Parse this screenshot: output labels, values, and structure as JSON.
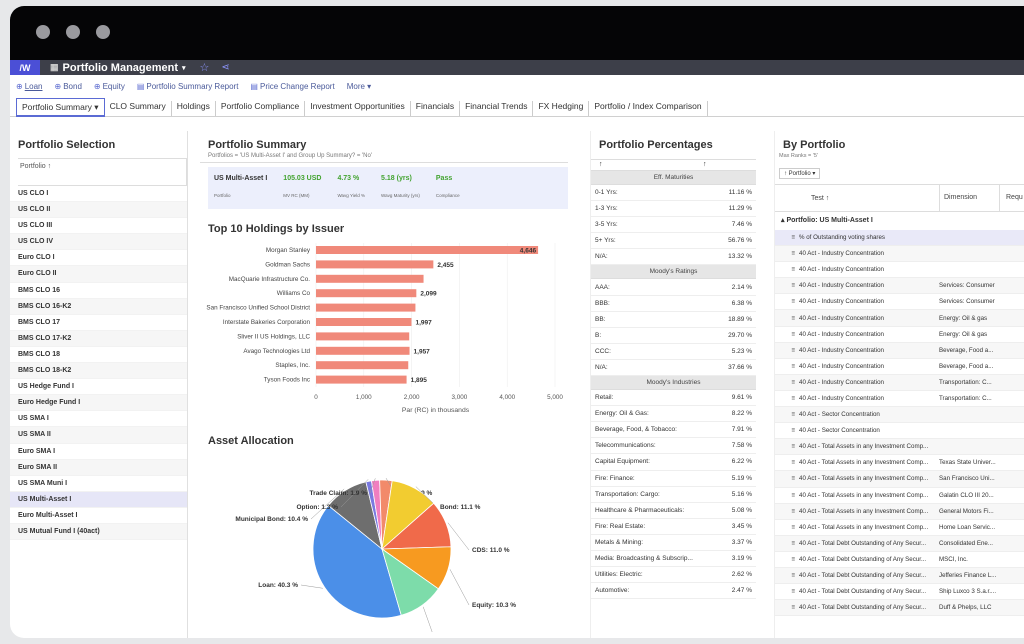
{
  "app": {
    "title": "Portfolio Management",
    "logo": "/W"
  },
  "toolbar": {
    "loan": "Loan",
    "bond": "Bond",
    "equity": "Equity",
    "report1": "Portfolio Summary Report",
    "report2": "Price Change Report",
    "more": "More"
  },
  "tabs": [
    "Portfolio Summary",
    "CLO Summary",
    "Holdings",
    "Portfolio Compliance",
    "Investment Opportunities",
    "Financials",
    "Financial Trends",
    "FX Hedging",
    "Portfolio / Index Comparison"
  ],
  "selection": {
    "title": "Portfolio Selection",
    "col": "Portfolio ↑",
    "items": [
      "US CLO I",
      "US CLO II",
      "US CLO III",
      "US CLO IV",
      "Euro CLO I",
      "Euro CLO II",
      "BMS CLO 16",
      "BMS CLO 16-K2",
      "BMS CLO 17",
      "BMS CLO 17-K2",
      "BMS CLO 18",
      "BMS CLO 18-K2",
      "US Hedge Fund I",
      "Euro Hedge Fund I",
      "US SMA I",
      "US SMA II",
      "Euro SMA I",
      "Euro SMA II",
      "US SMA Muni I",
      "US Multi-Asset I",
      "Euro Multi-Asset I",
      "US Mutual Fund I (40act)"
    ],
    "selected": "US Multi-Asset I"
  },
  "summary": {
    "title": "Portfolio Summary",
    "filter": "Portfolios = 'US Multi-Asset I' and Group Up Summary? = 'No'",
    "portfolio": "US Multi-Asset I",
    "mv": "105.03 USD",
    "yield": "4.73 %",
    "maturity": "5.18 (yrs)",
    "compliance": "Pass",
    "labels": [
      "Portfolio",
      "MV RC (MM)",
      "Wavg Yield %",
      "Wavg Maturity (yrs)",
      "Compliance"
    ]
  },
  "holdings": {
    "title": "Top 10 Holdings by Issuer",
    "xlabel": "Par (RC) in thousands"
  },
  "chart_data": [
    {
      "type": "bar",
      "title": "Top 10 Holdings by Issuer",
      "categories": [
        "Morgan Stanley",
        "Goldman Sachs",
        "MacQuarie Infrastructure Co.",
        "Williams Co",
        "San Francisco Unified School District",
        "Interstate Bakeries Corporation",
        "Sliver II US Holdings, LLC",
        "Avago Technologies Ltd",
        "Staples, Inc.",
        "Tyson Foods Inc"
      ],
      "values": [
        4646,
        2455,
        2250,
        2099,
        2080,
        1997,
        1950,
        1957,
        1930,
        1895
      ],
      "labels": [
        "4,646",
        "2,455",
        "",
        "2,099",
        "",
        "1,997",
        "",
        "1,957",
        "",
        "1,895"
      ],
      "xlabel": "Par (RC) in thousands",
      "xlim": [
        0,
        5000
      ],
      "ticks": [
        "0",
        "1,000",
        "2,000",
        "3,000",
        "4,000",
        "5,000"
      ],
      "color": "#f0897a"
    },
    {
      "type": "pie",
      "title": "Asset Allocation",
      "slices": [
        {
          "name": "Loan",
          "value": 40.3,
          "color": "#4b8fe8",
          "label": "Loan: 40.3 %"
        },
        {
          "name": "Municipal Bond",
          "value": 10.4,
          "color": "#6e6e6e",
          "label": "Municipal Bond: 10.4 %"
        },
        {
          "name": "Option",
          "value": 1.3,
          "color": "#7a7ae0",
          "label": "Option: 1.3 %"
        },
        {
          "name": "Trade Claim",
          "value": 1.9,
          "color": "#f07ec0",
          "label": "Trade Claim: 1.9 %"
        },
        {
          "name": "ABS",
          "value": 2.9,
          "color": "#f28a6a",
          "label": "ABS: 2.9 %"
        },
        {
          "name": "Bond",
          "value": 11.1,
          "color": "#f2cc30",
          "label": "Bond: 11.1 %"
        },
        {
          "name": "CDS",
          "value": 11.0,
          "color": "#f06a4a",
          "label": "CDS: 11.0 %"
        },
        {
          "name": "Equity",
          "value": 10.3,
          "color": "#f79a20",
          "label": "Equity: 10.3 %"
        },
        {
          "name": "IRS",
          "value": 10.7,
          "color": "#7ddcaa",
          "label": "IRS: 10.7 %"
        }
      ]
    }
  ],
  "allocation": {
    "title": "Asset Allocation"
  },
  "percentages": {
    "title": "Portfolio Percentages",
    "groups": [
      {
        "name": "Eff. Maturities",
        "rows": [
          [
            "0-1 Yrs:",
            "11.16 %"
          ],
          [
            "1-3 Yrs:",
            "11.29 %"
          ],
          [
            "3-5 Yrs:",
            "7.46 %"
          ],
          [
            "5+ Yrs:",
            "56.76 %"
          ],
          [
            "N/A:",
            "13.32 %"
          ]
        ]
      },
      {
        "name": "Moody's Ratings",
        "rows": [
          [
            "AAA:",
            "2.14 %"
          ],
          [
            "BBB:",
            "6.38 %"
          ],
          [
            "BB:",
            "18.89 %"
          ],
          [
            "B:",
            "29.70 %"
          ],
          [
            "CCC:",
            "5.23 %"
          ],
          [
            "N/A:",
            "37.66 %"
          ]
        ]
      },
      {
        "name": "Moody's Industries",
        "rows": [
          [
            "Retail:",
            "9.61 %"
          ],
          [
            "Energy: Oil & Gas:",
            "8.22 %"
          ],
          [
            "Beverage, Food, & Tobacco:",
            "7.91 %"
          ],
          [
            "Telecommunications:",
            "7.58 %"
          ],
          [
            "Capital Equipment:",
            "6.22 %"
          ],
          [
            "Fire: Finance:",
            "5.19 %"
          ],
          [
            "Transportation: Cargo:",
            "5.16 %"
          ],
          [
            "Healthcare & Pharmaceuticals:",
            "5.08 %"
          ],
          [
            "Fire: Real Estate:",
            "3.45 %"
          ],
          [
            "Metals & Mining:",
            "3.37 %"
          ],
          [
            "Media: Broadcasting & Subscrip...",
            "3.19 %"
          ],
          [
            "Utilities: Electric:",
            "2.62 %"
          ],
          [
            "Automotive:",
            "2.47 %"
          ]
        ]
      }
    ]
  },
  "byportfolio": {
    "title": "By Portfolio",
    "maxranks": "Max Ranks = '5'",
    "chip": "↑ Portfolio",
    "cols": [
      "Test ↑",
      "Dimension",
      "Requ"
    ],
    "group": "Portfolio: US Multi-Asset I",
    "rows": [
      [
        "% of Outstanding voting shares",
        ""
      ],
      [
        "40 Act - Industry Concentration",
        ""
      ],
      [
        "40 Act - Industry Concentration",
        ""
      ],
      [
        "40 Act - Industry Concentration",
        "Services: Consumer"
      ],
      [
        "40 Act - Industry Concentration",
        "Services: Consumer"
      ],
      [
        "40 Act - Industry Concentration",
        "Energy: Oil & gas"
      ],
      [
        "40 Act - Industry Concentration",
        "Energy: Oil & gas"
      ],
      [
        "40 Act - Industry Concentration",
        "Beverage, Food a..."
      ],
      [
        "40 Act - Industry Concentration",
        "Beverage, Food a..."
      ],
      [
        "40 Act - Industry Concentration",
        "Transportation: C..."
      ],
      [
        "40 Act - Industry Concentration",
        "Transportation: C..."
      ],
      [
        "40 Act - Sector Concentration",
        ""
      ],
      [
        "40 Act - Sector Concentration",
        ""
      ],
      [
        "40 Act - Total Assets in any Investment Comp...",
        ""
      ],
      [
        "40 Act - Total Assets in any Investment Comp...",
        "Texas State Univer..."
      ],
      [
        "40 Act - Total Assets in any Investment Comp...",
        "San Francisco Uni..."
      ],
      [
        "40 Act - Total Assets in any Investment Comp...",
        "Galatin CLO III 20..."
      ],
      [
        "40 Act - Total Assets in any Investment Comp...",
        "General Motors Fi..."
      ],
      [
        "40 Act - Total Assets in any Investment Comp...",
        "Home Loan Servic..."
      ],
      [
        "40 Act - Total Debt Outstanding of Any Secur...",
        "Consolidated Ene..."
      ],
      [
        "40 Act - Total Debt Outstanding of Any Secur...",
        "MSCI, Inc."
      ],
      [
        "40 Act - Total Debt Outstanding of Any Secur...",
        "Jefferies Finance L..."
      ],
      [
        "40 Act - Total Debt Outstanding of Any Secur...",
        "Ship Luxco 3 S.a.r...."
      ],
      [
        "40 Act - Total Debt Outstanding of Any Secur...",
        "Duff & Phelps, LLC"
      ]
    ]
  }
}
